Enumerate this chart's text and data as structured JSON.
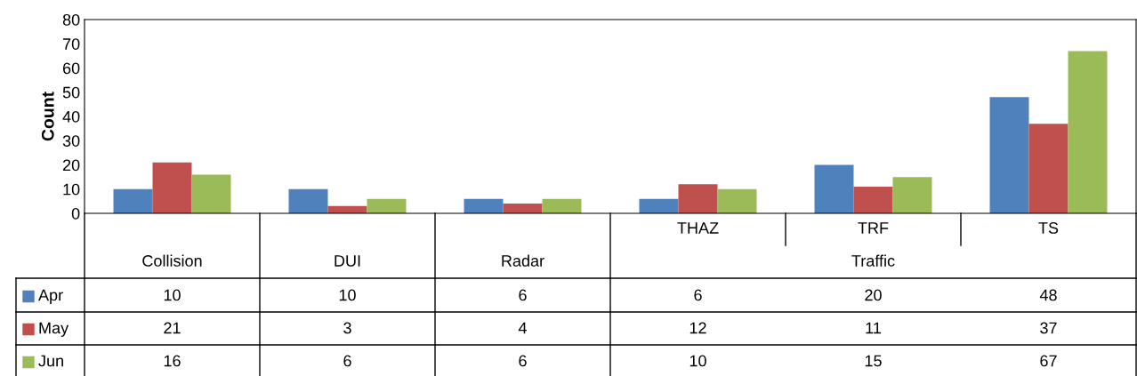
{
  "chart_data": {
    "type": "bar",
    "ylabel": "Count",
    "categories": [
      "Collision",
      "DUI",
      "Radar",
      "THAZ",
      "TRF",
      "TS"
    ],
    "series": [
      {
        "name": "Apr",
        "color": "#4f81bd",
        "values": [
          10,
          10,
          6,
          6,
          20,
          48
        ]
      },
      {
        "name": "May",
        "color": "#c0504d",
        "values": [
          21,
          3,
          4,
          12,
          11,
          37
        ]
      },
      {
        "name": "Jun",
        "color": "#9bbb59",
        "values": [
          16,
          6,
          6,
          10,
          15,
          67
        ]
      }
    ],
    "ylim": [
      0,
      80
    ],
    "yticks": [
      0,
      10,
      20,
      30,
      40,
      50,
      60,
      70,
      80
    ],
    "annotations": [
      "Traffic"
    ],
    "data_labels": true,
    "legend": "bottom left",
    "grid": false
  }
}
